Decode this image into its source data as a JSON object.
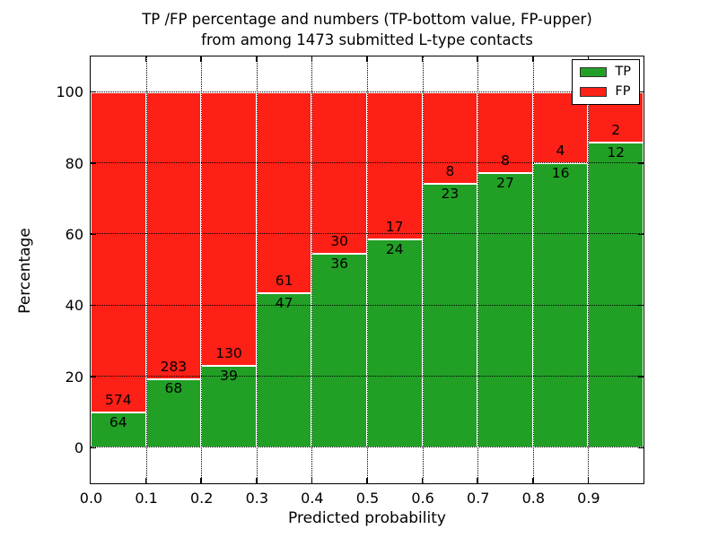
{
  "title": {
    "line1": "TP /FP percentage and numbers (TP-bottom value, FP-upper)",
    "line2": "from among 1473 submitted L-type contacts"
  },
  "axes": {
    "x": {
      "label": "Predicted probability",
      "tick_labels": [
        "0.0",
        "0.1",
        "0.2",
        "0.3",
        "0.4",
        "0.5",
        "0.6",
        "0.7",
        "0.8",
        "0.9"
      ]
    },
    "y": {
      "label": "Percentage",
      "tick_labels": [
        "0",
        "20",
        "40",
        "60",
        "80",
        "100"
      ],
      "tick_values": [
        0,
        20,
        40,
        60,
        80,
        100
      ]
    }
  },
  "legend": [
    {
      "label": "TP",
      "color": "#22a026"
    },
    {
      "label": "FP",
      "color": "#fd2016"
    }
  ],
  "colors": {
    "tp_green": "#22a026",
    "fp_red": "#fd2016",
    "grid": "#000000",
    "bar_edge": "#ffffff",
    "background": "#ffffff"
  },
  "chart_data": {
    "type": "bar",
    "subtype": "stacked-100-percent",
    "title": "TP /FP percentage and numbers (TP-bottom value, FP-upper) from among 1473 submitted L-type contacts",
    "xlabel": "Predicted probability",
    "ylabel": "Percentage",
    "bin_start": [
      0.0,
      0.1,
      0.2,
      0.3,
      0.4,
      0.5,
      0.6,
      0.7,
      0.8,
      0.9
    ],
    "bin_width": 0.1,
    "series": [
      {
        "name": "TP",
        "color": "#22a026",
        "values": [
          64,
          68,
          39,
          47,
          36,
          24,
          23,
          27,
          16,
          12
        ]
      },
      {
        "name": "FP",
        "color": "#fd2016",
        "values": [
          574,
          283,
          130,
          61,
          30,
          17,
          8,
          8,
          4,
          2
        ]
      }
    ],
    "tp_percent": [
      10.0,
      19.4,
      23.1,
      43.5,
      54.5,
      58.5,
      74.2,
      77.1,
      80.0,
      85.7
    ],
    "total_contacts": 1473,
    "xlim": [
      0.0,
      1.0
    ],
    "ylim": [
      -10,
      110
    ],
    "grid": "dotted black, x ticks 0.1-0.9 and y ticks 0-100 step 20",
    "legend_position": "upper right"
  }
}
